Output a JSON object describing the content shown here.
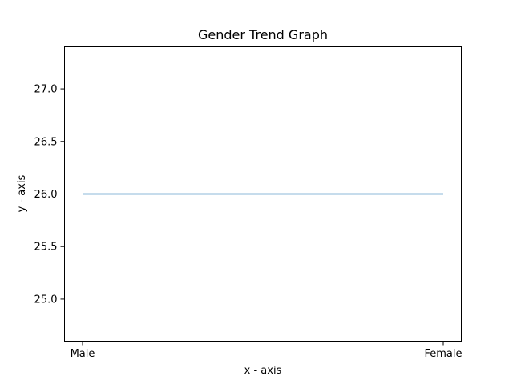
{
  "chart_data": {
    "type": "line",
    "title": "Gender Trend Graph",
    "xlabel": "x - axis",
    "ylabel": "y - axis",
    "categories": [
      "Male",
      "Female"
    ],
    "series": [
      {
        "values": [
          26.0,
          26.0
        ]
      }
    ],
    "ylim": [
      24.6,
      27.4
    ],
    "yticks": [
      {
        "value": 25.0,
        "label": "25.0"
      },
      {
        "value": 25.5,
        "label": "25.5"
      },
      {
        "value": 26.0,
        "label": "26.0"
      },
      {
        "value": 26.5,
        "label": "26.5"
      },
      {
        "value": 27.0,
        "label": "27.0"
      }
    ],
    "grid": false,
    "colors": {
      "series": "#1f77b4",
      "frame": "#000000",
      "text": "#000000"
    }
  }
}
